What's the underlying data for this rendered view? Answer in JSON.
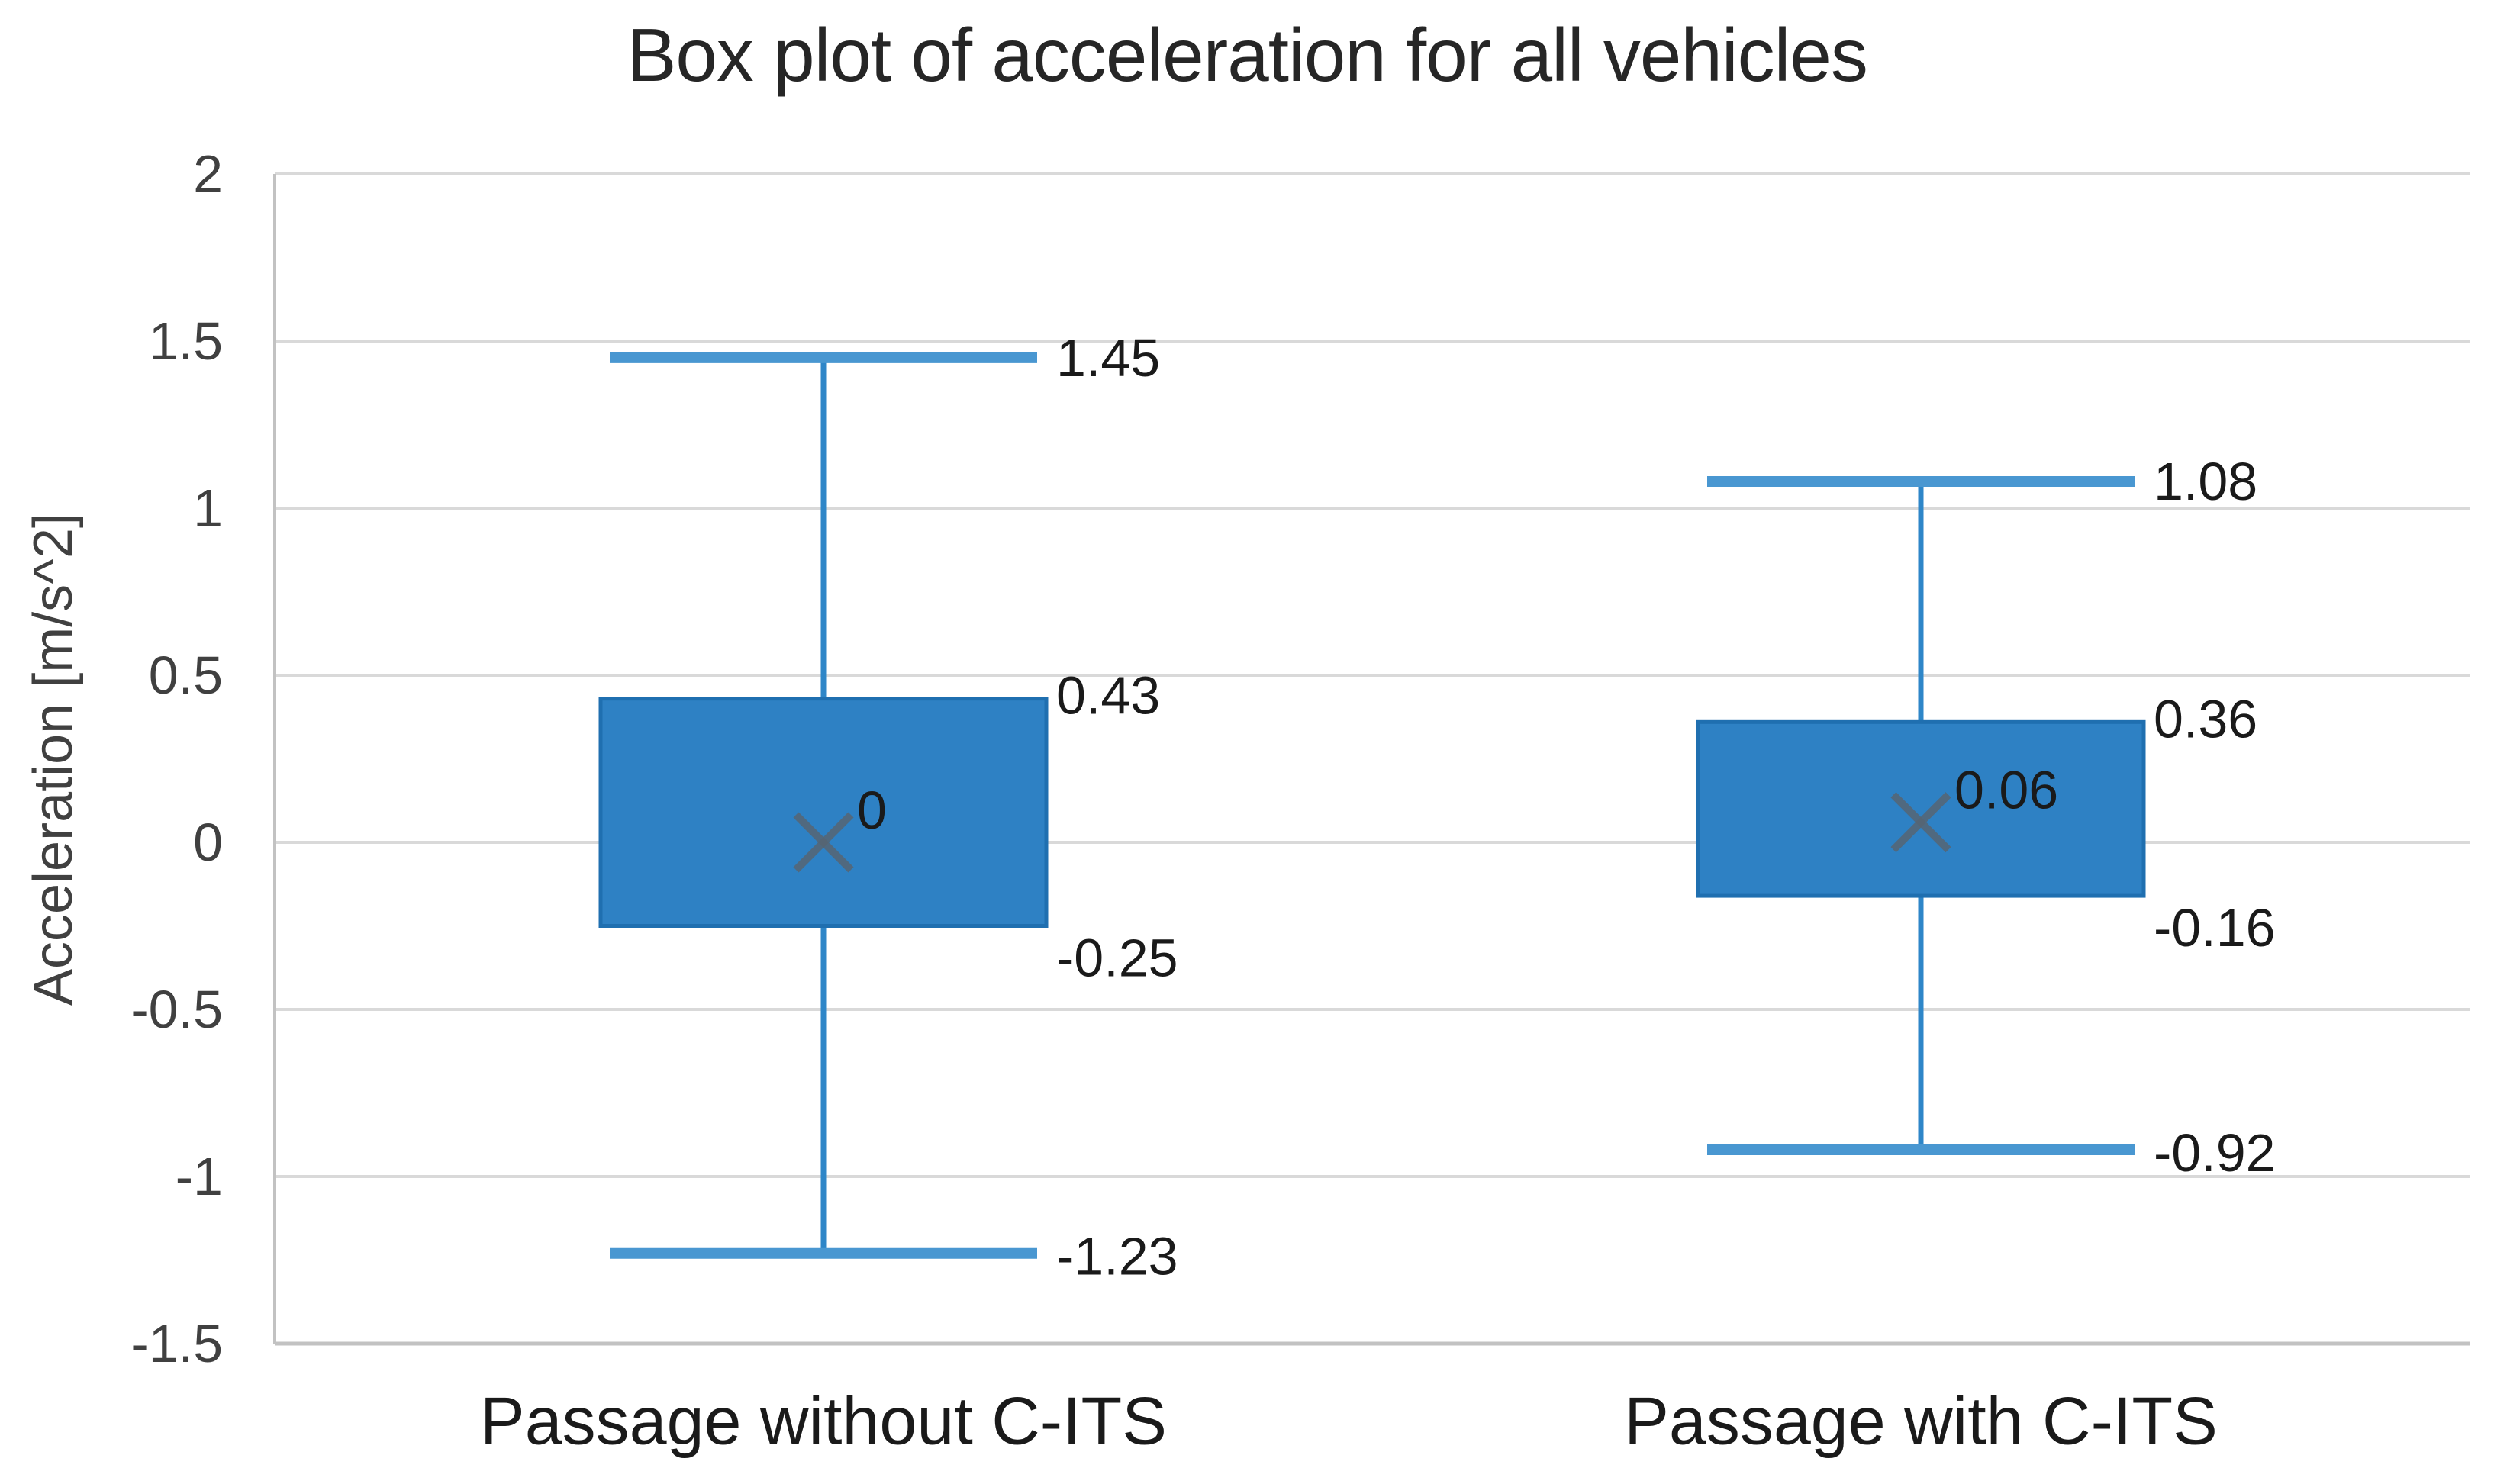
{
  "chart_data": {
    "type": "boxplot",
    "title": "Box plot of acceleration for all vehicles",
    "ylabel": "Acceleration [m/s^2]",
    "xlabel": "",
    "ylim": [
      -1.5,
      2
    ],
    "grid": true,
    "legend": false,
    "yticks": [
      {
        "value": 2,
        "label": "2"
      },
      {
        "value": 1.5,
        "label": "1.5"
      },
      {
        "value": 1,
        "label": "1"
      },
      {
        "value": 0.5,
        "label": "0.5"
      },
      {
        "value": 0,
        "label": "0"
      },
      {
        "value": -0.5,
        "label": "-0.5"
      },
      {
        "value": -1,
        "label": "-1"
      },
      {
        "value": -1.5,
        "label": "-1.5"
      }
    ],
    "categories": [
      "Passage without C-ITS",
      "Passage with C-ITS"
    ],
    "series": [
      {
        "category": "Passage without C-ITS",
        "whisker_high": 1.45,
        "q3": 0.43,
        "mean": 0,
        "q1": -0.25,
        "whisker_low": -1.23,
        "labels": {
          "whisker_high": "1.45",
          "q3": "0.43",
          "mean": "0",
          "q1": "-0.25",
          "whisker_low": "-1.23"
        }
      },
      {
        "category": "Passage with C-ITS",
        "whisker_high": 1.08,
        "q3": 0.36,
        "mean": 0.06,
        "q1": -0.16,
        "whisker_low": -0.92,
        "labels": {
          "whisker_high": "1.08",
          "q3": "0.36",
          "mean": "0.06",
          "q1": "-0.16",
          "whisker_low": "-0.92"
        }
      }
    ],
    "colors": {
      "box_fill": "#2E81C4",
      "box_stroke": "#1F6FB0",
      "whisker": "#2E86C8",
      "cap": "#4997D1",
      "mean_marker": "#566573",
      "grid": "#D9D9D9",
      "axis": "#C2C2C2",
      "title_text": "#262626",
      "tick_text": "#404040",
      "label_text": "#1a1a1a"
    }
  }
}
